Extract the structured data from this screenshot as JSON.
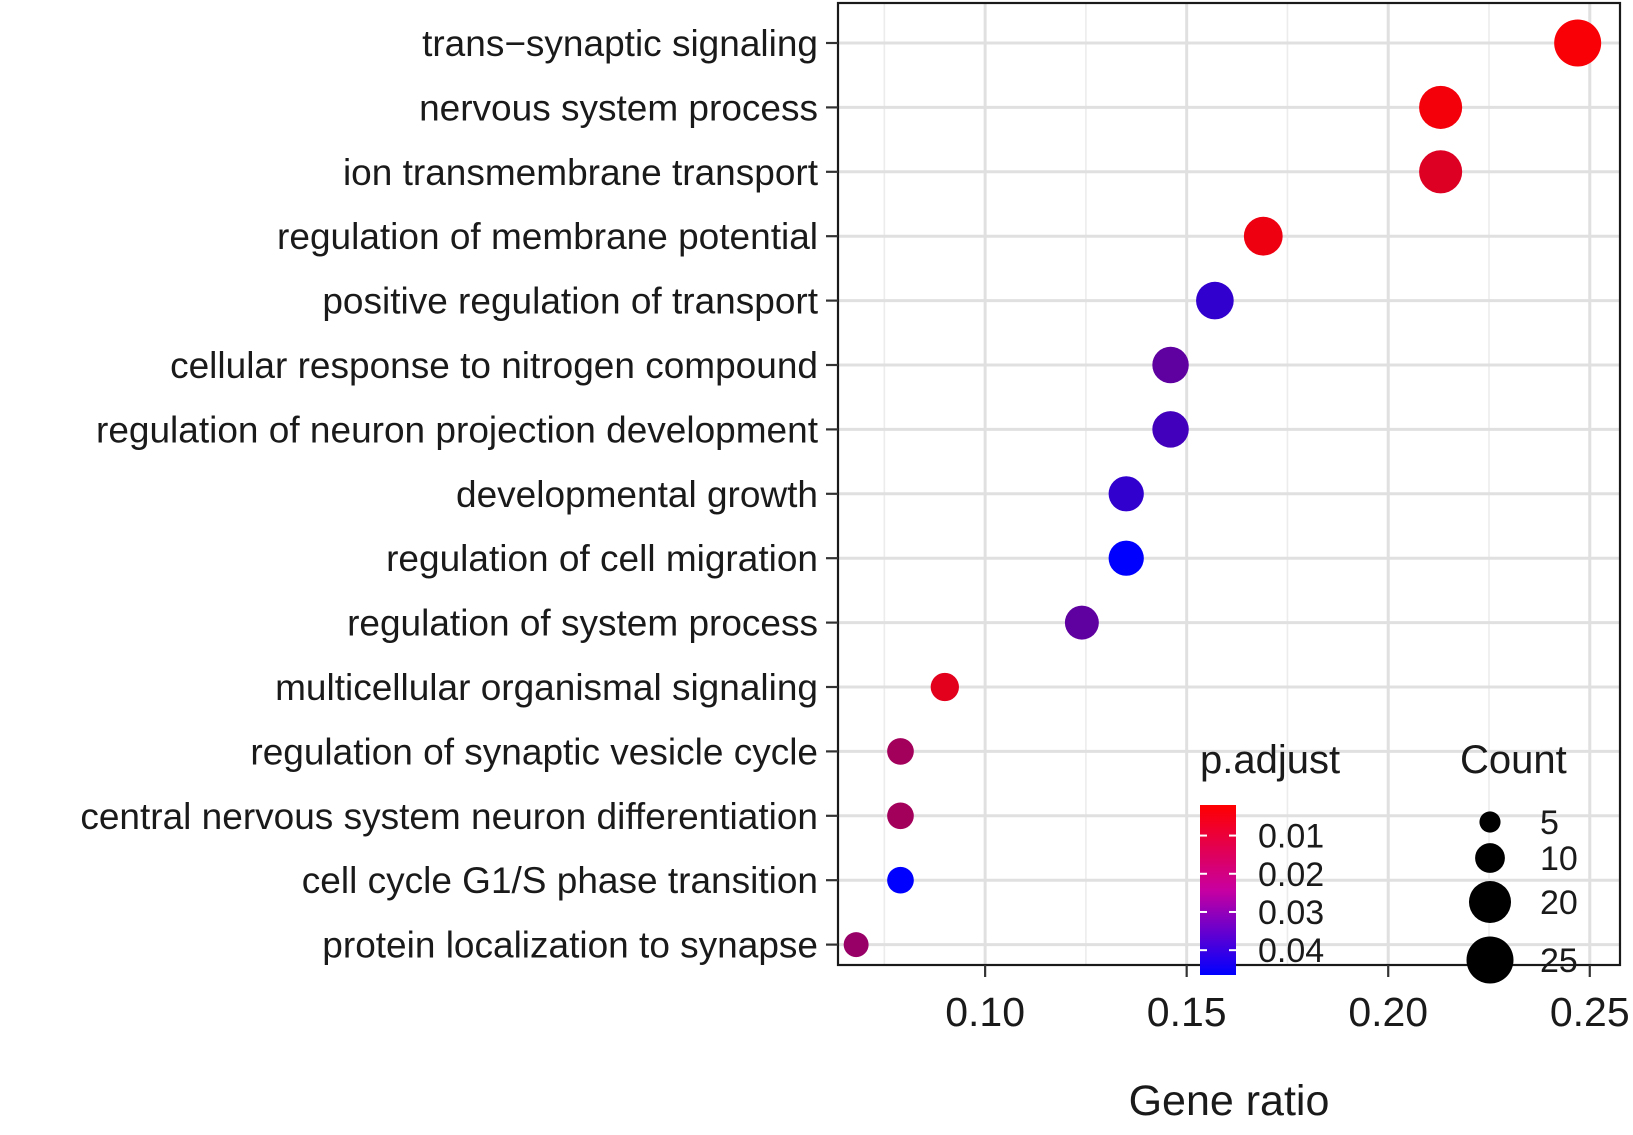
{
  "chart_data": {
    "type": "scatter",
    "subtype": "dotplot",
    "xlabel": "Gene ratio",
    "ylabel": "",
    "xlim": [
      0.0635,
      0.2575
    ],
    "x_ticks": [
      0.1,
      0.15,
      0.2,
      0.25
    ],
    "x_tick_labels": [
      "0.10",
      "0.15",
      "0.20",
      "0.25"
    ],
    "grid": true,
    "points": [
      {
        "term": "trans−synaptic signaling",
        "gene_ratio": 0.247,
        "count": 25,
        "p_adjust": 0.003
      },
      {
        "term": "nervous system process",
        "gene_ratio": 0.213,
        "count": 21,
        "p_adjust": 0.004
      },
      {
        "term": "ion transmembrane transport",
        "gene_ratio": 0.213,
        "count": 21,
        "p_adjust": 0.008
      },
      {
        "term": "regulation of membrane potential",
        "gene_ratio": 0.169,
        "count": 17,
        "p_adjust": 0.005
      },
      {
        "term": "positive regulation of transport",
        "gene_ratio": 0.157,
        "count": 16,
        "p_adjust": 0.038
      },
      {
        "term": "cellular response to nitrogen compound",
        "gene_ratio": 0.146,
        "count": 15,
        "p_adjust": 0.03
      },
      {
        "term": "regulation of neuron projection development",
        "gene_ratio": 0.146,
        "count": 15,
        "p_adjust": 0.035
      },
      {
        "term": "developmental growth",
        "gene_ratio": 0.135,
        "count": 14,
        "p_adjust": 0.038
      },
      {
        "term": "regulation of cell migration",
        "gene_ratio": 0.135,
        "count": 14,
        "p_adjust": 0.047
      },
      {
        "term": "regulation of system process",
        "gene_ratio": 0.124,
        "count": 13,
        "p_adjust": 0.03
      },
      {
        "term": "multicellular organismal signaling",
        "gene_ratio": 0.09,
        "count": 9,
        "p_adjust": 0.007
      },
      {
        "term": "regulation of synaptic vesicle cycle",
        "gene_ratio": 0.079,
        "count": 8,
        "p_adjust": 0.018
      },
      {
        "term": "central nervous system neuron differentiation",
        "gene_ratio": 0.079,
        "count": 8,
        "p_adjust": 0.018
      },
      {
        "term": "cell cycle G1/S phase transition",
        "gene_ratio": 0.079,
        "count": 8,
        "p_adjust": 0.047
      },
      {
        "term": "protein localization to synapse",
        "gene_ratio": 0.068,
        "count": 7,
        "p_adjust": 0.02
      }
    ],
    "color_legend": {
      "title": "p.adjust",
      "range": [
        0.002,
        0.0465
      ],
      "low_color": "#ff0000",
      "high_color": "#0000ff",
      "ticks": [
        0.01,
        0.02,
        0.03,
        0.04
      ],
      "tick_labels": [
        "0.01",
        "0.02",
        "0.03",
        "0.04"
      ]
    },
    "size_legend": {
      "title": "Count",
      "values": [
        5,
        10,
        20,
        25
      ],
      "labels": [
        "5",
        "10",
        "20",
        "25"
      ]
    }
  }
}
